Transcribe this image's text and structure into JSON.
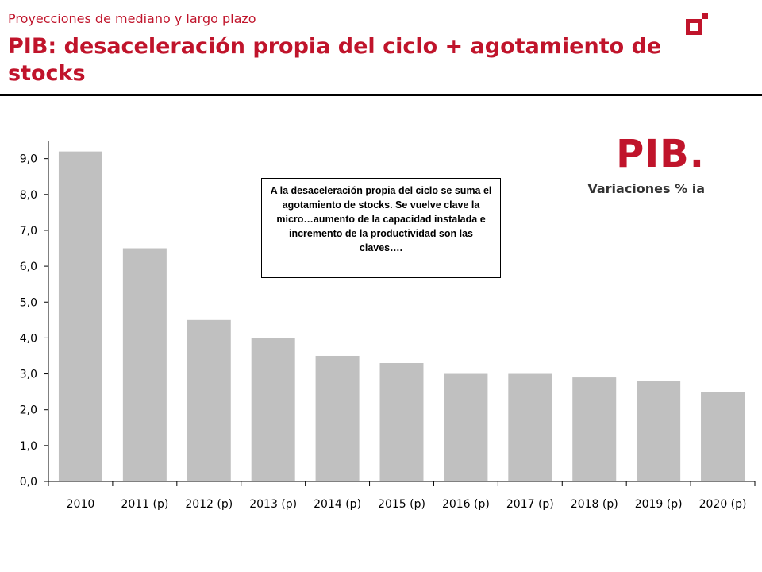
{
  "header": {
    "subtitle": "Proyecciones de mediano y largo plazo",
    "title": "PIB: desaceleración propia del ciclo + agotamiento de stocks"
  },
  "colors": {
    "brand": "#c0142b",
    "bar": "#c0c0c0"
  },
  "logo_icon": "brand-logo-icon",
  "annotation": {
    "text": "A la desaceleración propia del ciclo se suma el agotamiento de stocks. Se vuelve clave la micro…aumento de la capacidad instalada e incremento de la productividad son las claves…."
  },
  "chart_data": {
    "type": "bar",
    "title": "PIB.",
    "subtitle": "Variaciones % ia",
    "categories": [
      "2010",
      "2011 (p)",
      "2012 (p)",
      "2013 (p)",
      "2014 (p)",
      "2015 (p)",
      "2016 (p)",
      "2017 (p)",
      "2018 (p)",
      "2019 (p)",
      "2020 (p)"
    ],
    "values": [
      9.2,
      6.5,
      4.5,
      4.0,
      3.5,
      3.3,
      3.0,
      3.0,
      2.9,
      2.8,
      2.5
    ],
    "yticks": [
      "0,0",
      "1,0",
      "2,0",
      "3,0",
      "4,0",
      "5,0",
      "6,0",
      "7,0",
      "8,0",
      "9,0"
    ],
    "ylim": [
      0,
      9.5
    ],
    "xlabel": "",
    "ylabel": "",
    "grid": false,
    "legend": false
  }
}
